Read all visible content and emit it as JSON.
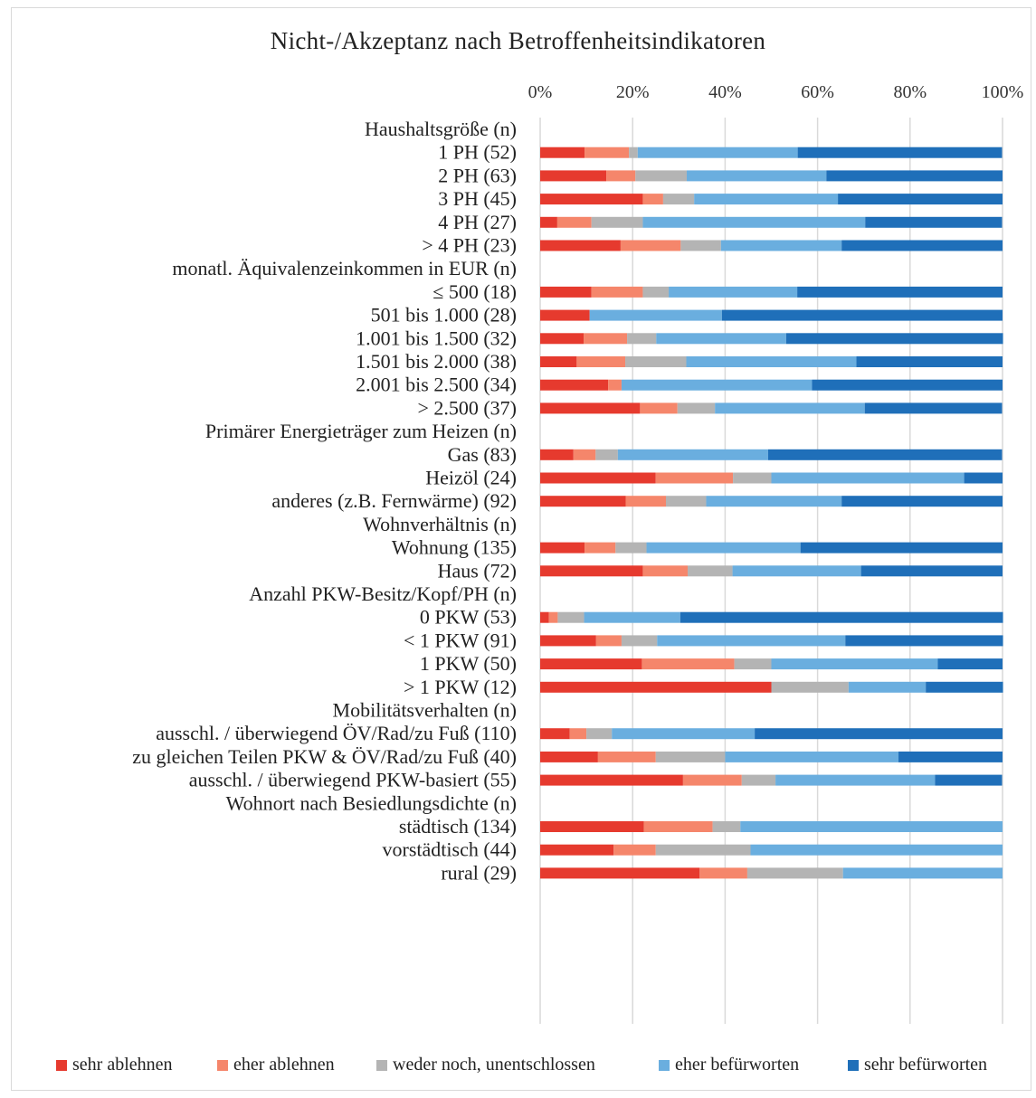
{
  "title": "Nicht-/Akzeptanz nach Betroffenheitsindikatoren",
  "colors": {
    "sehr_ablehnen": "#e63a2e",
    "eher_ablehnen": "#f5866b",
    "weder_noch": "#b4b4b4",
    "eher_befuerworten": "#6aaedf",
    "sehr_befuerworten": "#1f6fb9",
    "grid": "#d9d9d9"
  },
  "chart_data": {
    "type": "bar",
    "orientation": "horizontal",
    "stacked": "100%",
    "x_ticks": [
      "0%",
      "20%",
      "40%",
      "60%",
      "80%",
      "100%"
    ],
    "xlim": [
      0,
      100
    ],
    "grid": true,
    "legend_position": "bottom",
    "series_names": [
      "sehr ablehnen",
      "eher ablehnen",
      "weder noch, unentschlossen",
      "eher befürworten",
      "sehr befürworten"
    ],
    "rows": [
      {
        "label": "Haushaltsgröße (n)",
        "header": true
      },
      {
        "label": "1 PH (52)",
        "values": [
          9.6,
          9.6,
          1.9,
          34.6,
          44.2
        ]
      },
      {
        "label": "2 PH (63)",
        "values": [
          14.3,
          6.3,
          11.1,
          30.2,
          38.1
        ]
      },
      {
        "label": "3 PH (45)",
        "values": [
          22.2,
          4.4,
          6.7,
          31.1,
          35.6
        ]
      },
      {
        "label": "4 PH (27)",
        "values": [
          3.7,
          7.4,
          11.1,
          48.1,
          29.6
        ]
      },
      {
        "label": "> 4 PH (23)",
        "values": [
          17.4,
          13.0,
          8.7,
          26.1,
          34.8
        ]
      },
      {
        "label": "monatl. Äquivalenzeinkommen in EUR (n)",
        "header": true
      },
      {
        "label": "≤ 500 (18)",
        "values": [
          11.1,
          11.1,
          5.6,
          27.8,
          44.4
        ]
      },
      {
        "label": "501 bis 1.000 (28)",
        "values": [
          10.7,
          0,
          0,
          28.6,
          60.7
        ]
      },
      {
        "label": "1.001 bis 1.500 (32)",
        "values": [
          9.4,
          9.4,
          6.3,
          28.1,
          46.9
        ]
      },
      {
        "label": "1.501 bis 2.000 (38)",
        "values": [
          7.9,
          10.5,
          13.2,
          36.8,
          31.6
        ]
      },
      {
        "label": "2.001 bis 2.500 (34)",
        "values": [
          14.7,
          2.9,
          0,
          41.2,
          41.2
        ]
      },
      {
        "label": "> 2.500 (37)",
        "values": [
          21.6,
          8.1,
          8.1,
          32.4,
          29.7
        ]
      },
      {
        "label": "Primärer Energieträger zum Heizen (n)",
        "header": true
      },
      {
        "label": "Gas (83)",
        "values": [
          7.2,
          4.8,
          4.8,
          32.5,
          50.6
        ]
      },
      {
        "label": "Heizöl (24)",
        "values": [
          25.0,
          16.7,
          8.3,
          41.7,
          8.3
        ]
      },
      {
        "label": "anderes (z.B. Fernwärme) (92)",
        "values": [
          18.5,
          8.7,
          8.7,
          29.3,
          34.8
        ]
      },
      {
        "label": "Wohnverhältnis (n)",
        "header": true
      },
      {
        "label": "Wohnung (135)",
        "values": [
          9.6,
          6.7,
          6.7,
          33.3,
          43.7
        ]
      },
      {
        "label": "Haus (72)",
        "values": [
          22.2,
          9.7,
          9.7,
          27.8,
          30.6
        ]
      },
      {
        "label": "Anzahl PKW-Besitz/Kopf/PH (n)",
        "header": true
      },
      {
        "label": "0 PKW (53)",
        "values": [
          1.9,
          1.9,
          5.7,
          20.8,
          69.8
        ]
      },
      {
        "label": "< 1 PKW (91)",
        "values": [
          12.1,
          5.5,
          7.7,
          40.7,
          34.1
        ]
      },
      {
        "label": "1 PKW (50)",
        "values": [
          22.0,
          20.0,
          8.0,
          36.0,
          14.0
        ]
      },
      {
        "label": "> 1 PKW (12)",
        "values": [
          50.0,
          0,
          16.7,
          16.7,
          16.7
        ]
      },
      {
        "label": "Mobilitätsverhalten (n)",
        "header": true
      },
      {
        "label": "ausschl. / überwiegend ÖV/Rad/zu Fuß (110)",
        "values": [
          6.4,
          3.6,
          5.5,
          30.9,
          53.6
        ]
      },
      {
        "label": "zu gleichen Teilen PKW & ÖV/Rad/zu Fuß (40)",
        "values": [
          12.5,
          12.5,
          15.0,
          37.5,
          22.5
        ]
      },
      {
        "label": "ausschl. / überwiegend PKW-basiert (55)",
        "values": [
          30.9,
          12.7,
          7.3,
          34.5,
          14.5
        ]
      },
      {
        "label": "Wohnort nach Besiedlungsdichte (n)",
        "header": true
      },
      {
        "label": "städtisch (134)",
        "values": [
          22.4,
          14.9,
          6.0,
          56.7,
          0
        ]
      },
      {
        "label": "vorstädtisch (44)",
        "values": [
          15.9,
          9.1,
          20.5,
          54.5,
          0
        ]
      },
      {
        "label": "rural (29)",
        "values": [
          34.5,
          10.3,
          20.7,
          34.5,
          0
        ]
      }
    ]
  },
  "legend": [
    {
      "label": "sehr ablehnen",
      "color_key": "sehr_ablehnen"
    },
    {
      "label": "eher ablehnen",
      "color_key": "eher_ablehnen"
    },
    {
      "label": "weder noch, unentschlossen",
      "color_key": "weder_noch"
    },
    {
      "label": "eher befürworten",
      "color_key": "eher_befuerworten"
    },
    {
      "label": "sehr befürworten",
      "color_key": "sehr_befuerworten"
    }
  ]
}
